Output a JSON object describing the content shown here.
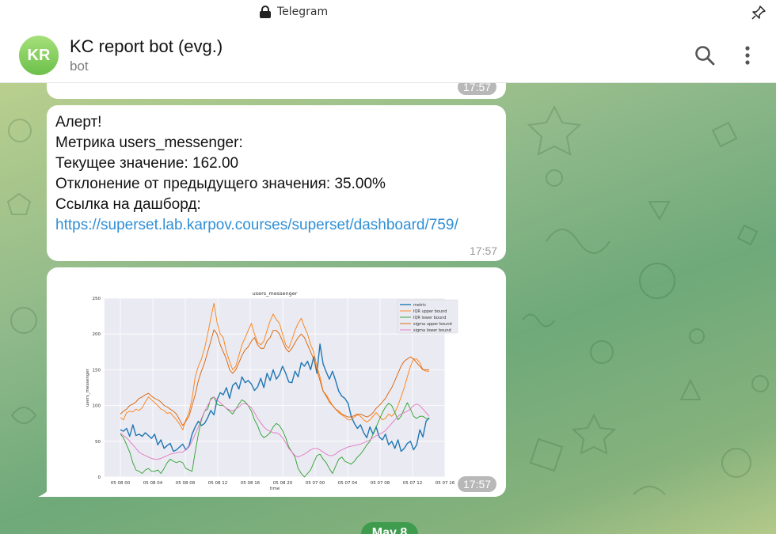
{
  "window": {
    "title": "Telegram"
  },
  "header": {
    "avatar_initials": "KR",
    "title": "KC report bot (evg.)",
    "subtitle": "bot"
  },
  "messages": {
    "prev_chart": {
      "xlabel": "time",
      "time": "17:57"
    },
    "alert": {
      "line1": "Алерт!",
      "line2": "Метрика users_messenger:",
      "line3": "Текущее значение: 162.00",
      "line4": "Отклонение от предыдущего значения: 35.00%",
      "line5": "Ссылка на дашборд:",
      "link": "https://superset.lab.karpov.courses/superset/dashboard/759/",
      "time": "17:57"
    },
    "chart_msg": {
      "time": "17:57"
    }
  },
  "date_separator": "May 8",
  "colors": {
    "avatar": "#7bc857",
    "link": "#2f8fd6",
    "metric": "#1f77b4",
    "iqr_upper": "#ff7f0e",
    "iqr_lower": "#2ca02c",
    "sigma_upper": "#d95f02",
    "sigma_lower": "#e377c2"
  },
  "chart_data": {
    "type": "line",
    "title": "users_messenger",
    "xlabel": "time",
    "ylabel": "users_messenger",
    "ylim": [
      0,
      250
    ],
    "yticks": [
      0,
      50,
      100,
      150,
      200,
      250
    ],
    "xticks": [
      "05 08 00",
      "05 08 04",
      "05 08 08",
      "05 08 12",
      "05 08 16",
      "05 08 20",
      "05 07 00",
      "05 07 04",
      "05 07 08",
      "05 07 12",
      "05 07 16"
    ],
    "x_points": 100,
    "grid": true,
    "legend_position": "top-right",
    "series": [
      {
        "name": "metric",
        "values": [
          66,
          64,
          68,
          57,
          73,
          58,
          60,
          57,
          62,
          58,
          54,
          60,
          45,
          52,
          40,
          44,
          47,
          36,
          38,
          42,
          46,
          38,
          43,
          60,
          70,
          78,
          72,
          75,
          83,
          93,
          87,
          108,
          118,
          115,
          125,
          110,
          128,
          132,
          123,
          140,
          132,
          135,
          130,
          121,
          126,
          138,
          125,
          145,
          135,
          150,
          137,
          143,
          155,
          145,
          133,
          132,
          148,
          140,
          160,
          155,
          162,
          150,
          168,
          145,
          186,
          158,
          147,
          137,
          148,
          135,
          120,
          113,
          110,
          103,
          85,
          75,
          68,
          73,
          62,
          55,
          70,
          60,
          70,
          56,
          52,
          60,
          45,
          50,
          40,
          52,
          36,
          40,
          47,
          50,
          38,
          45,
          66,
          56,
          78,
          83
        ]
      },
      {
        "name": "IQR upper bound",
        "values": [
          83,
          80,
          90,
          92,
          91,
          95,
          93,
          97,
          105,
          112,
          108,
          104,
          100,
          95,
          93,
          89,
          90,
          85,
          80,
          74,
          66,
          80,
          90,
          110,
          140,
          155,
          165,
          180,
          200,
          222,
          243,
          216,
          200,
          195,
          175,
          162,
          150,
          155,
          170,
          185,
          195,
          205,
          215,
          200,
          188,
          185,
          190,
          205,
          218,
          228,
          220,
          215,
          200,
          185,
          180,
          192,
          205,
          215,
          222,
          210,
          200,
          185,
          175,
          155,
          140,
          120,
          115,
          108,
          100,
          95,
          90,
          87,
          84,
          80,
          80,
          84,
          87,
          85,
          80,
          77,
          80,
          85,
          90,
          85,
          80,
          82,
          88,
          85,
          90,
          100,
          112,
          125,
          140,
          155,
          165,
          165,
          160,
          150,
          148,
          148
        ]
      },
      {
        "name": "IQR lower bound",
        "values": [
          60,
          55,
          45,
          35,
          20,
          10,
          8,
          5,
          10,
          12,
          8,
          8,
          10,
          5,
          12,
          20,
          25,
          22,
          20,
          22,
          20,
          12,
          10,
          8,
          35,
          60,
          80,
          92,
          95,
          110,
          112,
          102,
          100,
          100,
          96,
          92,
          88,
          95,
          102,
          108,
          105,
          100,
          92,
          80,
          72,
          60,
          55,
          58,
          62,
          70,
          75,
          72,
          65,
          55,
          42,
          35,
          28,
          12,
          5,
          0,
          5,
          10,
          20,
          30,
          32,
          25,
          20,
          12,
          5,
          15,
          25,
          28,
          22,
          20,
          18,
          22,
          28,
          32,
          38,
          45,
          50,
          60,
          70,
          80,
          90,
          98,
          103,
          100,
          90,
          80,
          85,
          95,
          104,
          95,
          85,
          82,
          85,
          85,
          82,
          81
        ]
      },
      {
        "name": "sigma upper bound",
        "values": [
          88,
          92,
          95,
          100,
          102,
          105,
          110,
          112,
          115,
          117,
          113,
          110,
          108,
          105,
          100,
          98,
          95,
          92,
          88,
          80,
          72,
          78,
          85,
          100,
          115,
          135,
          148,
          160,
          175,
          190,
          206,
          200,
          185,
          175,
          165,
          150,
          145,
          150,
          160,
          170,
          178,
          182,
          190,
          195,
          185,
          180,
          180,
          190,
          195,
          205,
          205,
          200,
          190,
          180,
          175,
          180,
          188,
          195,
          200,
          195,
          185,
          175,
          165,
          150,
          135,
          120,
          113,
          105,
          100,
          95,
          92,
          88,
          86,
          84,
          84,
          86,
          88,
          88,
          86,
          84,
          86,
          90,
          96,
          100,
          105,
          110,
          118,
          125,
          135,
          145,
          155,
          162,
          165,
          168,
          165,
          160,
          155,
          150,
          150,
          150
        ]
      },
      {
        "name": "sigma lower bound",
        "values": [
          62,
          58,
          55,
          50,
          45,
          40,
          35,
          32,
          30,
          28,
          26,
          25,
          25,
          26,
          28,
          30,
          32,
          33,
          34,
          35,
          35,
          38,
          42,
          50,
          60,
          70,
          82,
          92,
          100,
          108,
          112,
          108,
          104,
          100,
          96,
          94,
          92,
          95,
          98,
          102,
          103,
          100,
          97,
          90,
          82,
          76,
          70,
          66,
          64,
          62,
          62,
          60,
          55,
          48,
          40,
          35,
          30,
          28,
          30,
          32,
          35,
          38,
          40,
          40,
          38,
          35,
          32,
          30,
          30,
          32,
          36,
          38,
          40,
          42,
          43,
          44,
          45,
          46,
          48,
          50,
          52,
          55,
          58,
          60,
          62,
          65,
          70,
          75,
          80,
          85,
          88,
          90,
          92,
          95,
          100,
          102,
          100,
          95,
          90,
          85
        ]
      }
    ]
  }
}
